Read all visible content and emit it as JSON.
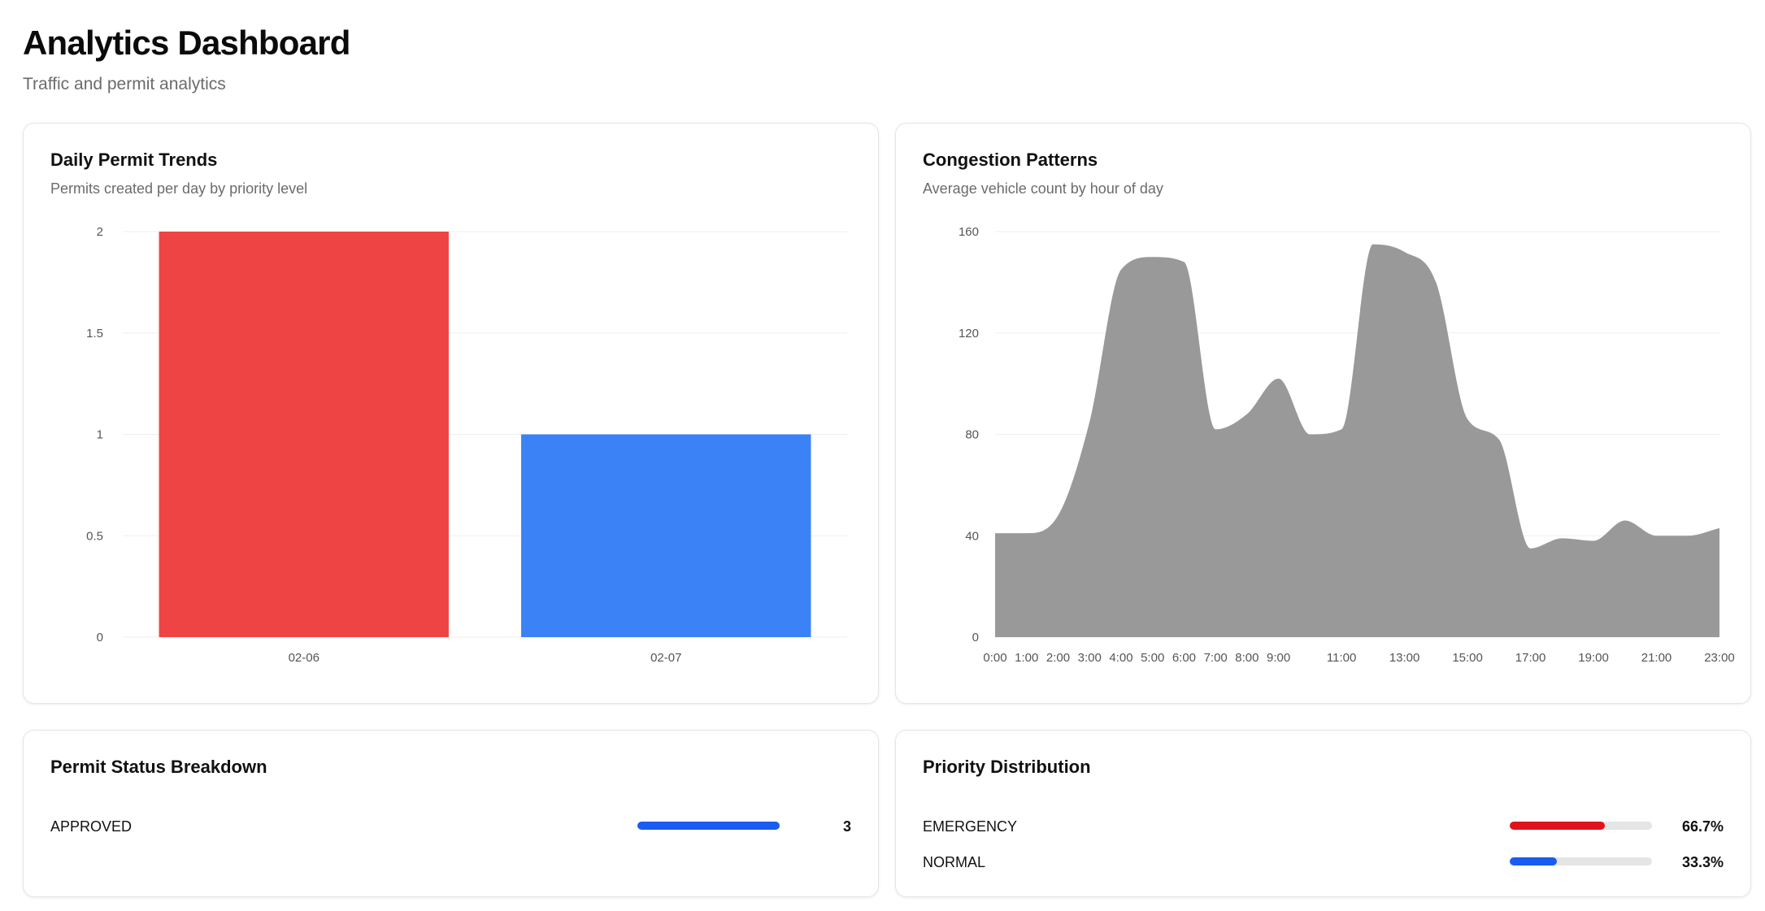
{
  "header": {
    "title": "Analytics Dashboard",
    "subtitle": "Traffic and permit analytics"
  },
  "daily_permit_trends": {
    "title": "Daily Permit Trends",
    "subtitle": "Permits created per day by priority level"
  },
  "congestion_patterns": {
    "title": "Congestion Patterns",
    "subtitle": "Average vehicle count by hour of day"
  },
  "permit_status": {
    "title": "Permit Status Breakdown",
    "items": [
      {
        "label": "APPROVED",
        "value": "3",
        "fraction": 1.0,
        "color": "#1a5cf2"
      }
    ]
  },
  "priority_distribution": {
    "title": "Priority Distribution",
    "items": [
      {
        "label": "EMERGENCY",
        "value": "66.7%",
        "fraction": 0.667,
        "color": "#e0131d"
      },
      {
        "label": "NORMAL",
        "value": "33.3%",
        "fraction": 0.333,
        "color": "#1a5cf2"
      }
    ]
  },
  "chart_data": [
    {
      "type": "bar",
      "title": "Daily Permit Trends",
      "categories": [
        "02-06",
        "02-07"
      ],
      "values": [
        2,
        1
      ],
      "colors": [
        "#ef4444",
        "#3b82f6"
      ],
      "ylim": [
        0,
        2
      ],
      "yticks": [
        0,
        0.5,
        1,
        1.5,
        2
      ],
      "ytick_labels": [
        "0",
        "0.5",
        "1",
        "1.5",
        "2"
      ],
      "grid": true
    },
    {
      "type": "area",
      "title": "Congestion Patterns",
      "x": [
        0,
        1,
        2,
        3,
        4,
        5,
        6,
        7,
        8,
        9,
        10,
        11,
        12,
        13,
        14,
        15,
        16,
        17,
        18,
        19,
        20,
        21,
        22,
        23
      ],
      "values": [
        41,
        41,
        48,
        85,
        145,
        150,
        148,
        82,
        88,
        102,
        80,
        82,
        155,
        152,
        140,
        86,
        78,
        35,
        39,
        38,
        46,
        40,
        40,
        43
      ],
      "xtick_labels": [
        "0:00",
        "1:00",
        "2:00",
        "3:00",
        "4:00",
        "5:00",
        "6:00",
        "7:00",
        "8:00",
        "9:00",
        "11:00",
        "13:00",
        "15:00",
        "17:00",
        "19:00",
        "21:00",
        "23:00"
      ],
      "xtick_positions": [
        0,
        1,
        2,
        3,
        4,
        5,
        6,
        7,
        8,
        9,
        11,
        13,
        15,
        17,
        19,
        21,
        23
      ],
      "ylim": [
        0,
        160
      ],
      "yticks": [
        0,
        40,
        80,
        120,
        160
      ],
      "ytick_labels": [
        "0",
        "40",
        "80",
        "120",
        "160"
      ],
      "fill_color": "#999999",
      "grid": true
    }
  ]
}
